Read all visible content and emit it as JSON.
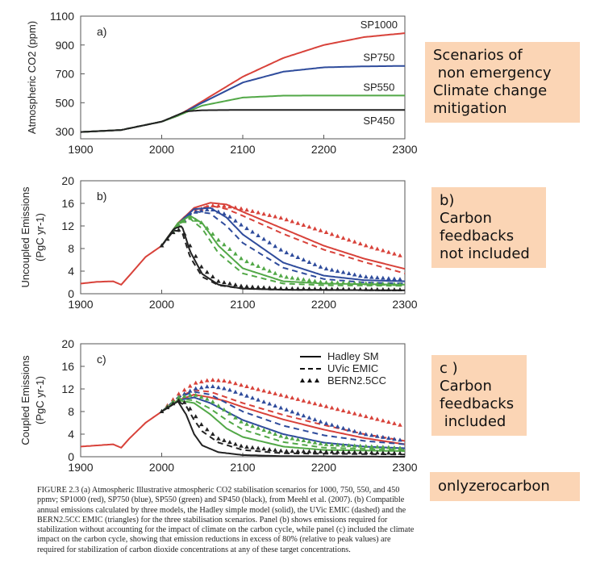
{
  "chart_data": [
    {
      "type": "line",
      "panel_label": "a)",
      "ylabel": "Atmospheric CO2 (ppm)",
      "xlim": [
        1900,
        2300
      ],
      "ylim": [
        250,
        1100
      ],
      "xticks": [
        1900,
        2000,
        2100,
        2200,
        2300
      ],
      "yticks": [
        300,
        500,
        700,
        900,
        1100
      ],
      "series": [
        {
          "name": "SP1000",
          "color": "#d8423a",
          "x": [
            1900,
            1950,
            2000,
            2020,
            2050,
            2100,
            2150,
            2200,
            2250,
            2300
          ],
          "y": [
            297,
            311,
            369,
            410,
            510,
            680,
            810,
            900,
            955,
            982
          ]
        },
        {
          "name": "SP750",
          "color": "#2f4c9c",
          "x": [
            1900,
            1950,
            2000,
            2020,
            2050,
            2100,
            2150,
            2200,
            2250,
            2300
          ],
          "y": [
            297,
            311,
            369,
            410,
            500,
            640,
            715,
            745,
            752,
            755
          ]
        },
        {
          "name": "SP550",
          "color": "#52a847",
          "x": [
            1900,
            1950,
            2000,
            2020,
            2050,
            2100,
            2150,
            2200,
            2250,
            2300
          ],
          "y": [
            297,
            311,
            369,
            410,
            480,
            536,
            549,
            550,
            550,
            550
          ]
        },
        {
          "name": "SP450",
          "color": "#222222",
          "x": [
            1900,
            1950,
            2000,
            2030,
            2050,
            2100,
            2200,
            2300
          ],
          "y": [
            297,
            311,
            369,
            440,
            448,
            450,
            450,
            450
          ]
        }
      ]
    },
    {
      "type": "line",
      "panel_label": "b)",
      "ylabel": "Uncoupled Emissions",
      "yunit": "(PgC yr-1)",
      "xlim": [
        1900,
        2300
      ],
      "ylim": [
        0,
        20
      ],
      "xticks": [
        1900,
        2000,
        2100,
        2200,
        2300
      ],
      "yticks": [
        0,
        4,
        8,
        12,
        16,
        20
      ],
      "series": [
        {
          "color": "#d8423a",
          "style": "solid",
          "x": [
            1900,
            1920,
            1940,
            1950,
            1960,
            1980,
            2000,
            2020,
            2040,
            2060,
            2080,
            2100,
            2150,
            2200,
            2250,
            2300
          ],
          "y": [
            1.8,
            2.1,
            2.2,
            1.6,
            3.2,
            6.5,
            8.5,
            12.5,
            15.2,
            16.1,
            15.8,
            14.5,
            11.5,
            8.5,
            6.2,
            4.4
          ]
        },
        {
          "color": "#d8423a",
          "style": "dashed",
          "x": [
            2000,
            2020,
            2040,
            2060,
            2080,
            2100,
            2150,
            2200,
            2250,
            2300
          ],
          "y": [
            8.5,
            12.2,
            14.8,
            15.6,
            15.0,
            13.8,
            10.6,
            7.8,
            5.6,
            3.6
          ]
        },
        {
          "color": "#d8423a",
          "style": "triangles",
          "x": [
            2000,
            2020,
            2040,
            2060,
            2080,
            2100,
            2150,
            2200,
            2250,
            2300
          ],
          "y": [
            8.5,
            12.0,
            14.5,
            15.6,
            15.5,
            15.0,
            13.3,
            11.0,
            8.6,
            6.5
          ]
        },
        {
          "color": "#2f4c9c",
          "style": "solid",
          "x": [
            2000,
            2020,
            2040,
            2060,
            2080,
            2100,
            2150,
            2200,
            2250,
            2300
          ],
          "y": [
            8.5,
            12.4,
            15.0,
            15.2,
            13.5,
            10.5,
            5.5,
            3.2,
            2.4,
            2.2
          ]
        },
        {
          "color": "#2f4c9c",
          "style": "dashed",
          "x": [
            2000,
            2020,
            2040,
            2060,
            2080,
            2100,
            2150,
            2200,
            2250,
            2300
          ],
          "y": [
            8.5,
            12.2,
            14.6,
            14.2,
            12.0,
            9.0,
            4.6,
            2.6,
            2.0,
            1.8
          ]
        },
        {
          "color": "#2f4c9c",
          "style": "triangles",
          "x": [
            2000,
            2020,
            2040,
            2060,
            2080,
            2100,
            2150,
            2200,
            2250,
            2300
          ],
          "y": [
            8.5,
            12.0,
            14.4,
            15.0,
            14.0,
            12.0,
            7.5,
            4.5,
            3.0,
            2.5
          ]
        },
        {
          "color": "#52a847",
          "style": "solid",
          "x": [
            2000,
            2020,
            2035,
            2050,
            2070,
            2100,
            2150,
            2200,
            2300
          ],
          "y": [
            8.5,
            12.5,
            13.8,
            12.5,
            8.5,
            4.5,
            2.2,
            1.8,
            1.6
          ]
        },
        {
          "color": "#52a847",
          "style": "dashed",
          "x": [
            2000,
            2020,
            2035,
            2050,
            2070,
            2100,
            2150,
            2200,
            2300
          ],
          "y": [
            8.5,
            12.3,
            13.3,
            11.5,
            7.2,
            3.6,
            1.8,
            1.5,
            1.4
          ]
        },
        {
          "color": "#52a847",
          "style": "triangles",
          "x": [
            2000,
            2020,
            2035,
            2050,
            2070,
            2100,
            2150,
            2200,
            2300
          ],
          "y": [
            8.5,
            12.0,
            13.5,
            12.5,
            9.5,
            6.0,
            3.0,
            2.0,
            1.6
          ]
        },
        {
          "color": "#222222",
          "style": "solid",
          "x": [
            2000,
            2015,
            2025,
            2035,
            2050,
            2070,
            2100,
            2150,
            2300
          ],
          "y": [
            8.5,
            11.5,
            12.0,
            7.5,
            3.5,
            1.6,
            0.9,
            0.7,
            0.6
          ]
        },
        {
          "color": "#222222",
          "style": "dashed",
          "x": [
            2000,
            2015,
            2025,
            2035,
            2050,
            2070,
            2100,
            2150,
            2300
          ],
          "y": [
            8.5,
            11.2,
            11.0,
            6.5,
            3.0,
            1.5,
            0.9,
            0.7,
            0.6
          ]
        },
        {
          "color": "#222222",
          "style": "triangles",
          "x": [
            2000,
            2015,
            2025,
            2035,
            2050,
            2070,
            2100,
            2150,
            2300
          ],
          "y": [
            8.5,
            11.0,
            11.5,
            8.5,
            4.5,
            2.2,
            1.3,
            0.9,
            0.7
          ]
        }
      ]
    },
    {
      "type": "line",
      "panel_label": "c)",
      "ylabel": "Coupled Emissions",
      "yunit": "(PgC yr-1)",
      "xlim": [
        1900,
        2300
      ],
      "ylim": [
        0,
        20
      ],
      "xticks": [
        1900,
        2000,
        2100,
        2200,
        2300
      ],
      "yticks": [
        0,
        4,
        8,
        12,
        16,
        20
      ],
      "legend": {
        "position": "top-right",
        "entries": [
          {
            "label": "Hadley SM",
            "style": "solid"
          },
          {
            "label": "UVic EMIC",
            "style": "dashed"
          },
          {
            "label": "BERN2.5CC",
            "style": "triangles"
          }
        ]
      },
      "series": [
        {
          "color": "#d8423a",
          "style": "solid",
          "x": [
            1900,
            1920,
            1940,
            1950,
            1960,
            1980,
            2000,
            2020,
            2040,
            2060,
            2080,
            2100,
            2150,
            2200,
            2250,
            2300
          ],
          "y": [
            1.8,
            2.0,
            2.2,
            1.6,
            3.2,
            6.0,
            8.0,
            10.0,
            11.0,
            10.5,
            9.8,
            8.8,
            6.6,
            4.8,
            3.3,
            2.2
          ]
        },
        {
          "color": "#d8423a",
          "style": "dashed",
          "x": [
            2000,
            2020,
            2040,
            2060,
            2080,
            2100,
            2150,
            2200,
            2250,
            2300
          ],
          "y": [
            8.0,
            10.5,
            11.8,
            11.5,
            10.5,
            9.5,
            7.4,
            5.6,
            4.0,
            2.8
          ]
        },
        {
          "color": "#d8423a",
          "style": "triangles",
          "x": [
            2000,
            2020,
            2040,
            2060,
            2080,
            2100,
            2150,
            2200,
            2250,
            2300
          ],
          "y": [
            8.0,
            11.0,
            13.0,
            13.6,
            13.4,
            12.6,
            10.8,
            9.0,
            7.2,
            5.4
          ]
        },
        {
          "color": "#2f4c9c",
          "style": "solid",
          "x": [
            2000,
            2020,
            2040,
            2060,
            2080,
            2100,
            2150,
            2200,
            2250,
            2300
          ],
          "y": [
            8.0,
            10.0,
            10.5,
            9.5,
            8.0,
            6.5,
            4.0,
            2.5,
            1.8,
            1.5
          ]
        },
        {
          "color": "#2f4c9c",
          "style": "dashed",
          "x": [
            2000,
            2020,
            2040,
            2060,
            2080,
            2100,
            2150,
            2200,
            2250,
            2300
          ],
          "y": [
            8.0,
            10.5,
            11.5,
            11.0,
            9.5,
            8.0,
            5.5,
            3.8,
            2.8,
            2.2
          ]
        },
        {
          "color": "#2f4c9c",
          "style": "triangles",
          "x": [
            2000,
            2020,
            2040,
            2060,
            2080,
            2100,
            2150,
            2200,
            2250,
            2300
          ],
          "y": [
            8.0,
            10.5,
            12.0,
            12.5,
            12.0,
            11.0,
            8.5,
            6.0,
            4.0,
            2.8
          ]
        },
        {
          "color": "#52a847",
          "style": "solid",
          "x": [
            2000,
            2020,
            2040,
            2060,
            2080,
            2100,
            2150,
            2200,
            2300
          ],
          "y": [
            8.0,
            10.0,
            9.5,
            7.5,
            5.0,
            3.5,
            1.8,
            1.2,
            1.0
          ]
        },
        {
          "color": "#52a847",
          "style": "dashed",
          "x": [
            2000,
            2020,
            2040,
            2060,
            2080,
            2100,
            2150,
            2200,
            2300
          ],
          "y": [
            8.0,
            10.2,
            10.0,
            8.5,
            6.5,
            4.8,
            2.6,
            1.6,
            1.2
          ]
        },
        {
          "color": "#52a847",
          "style": "triangles",
          "x": [
            2000,
            2020,
            2040,
            2060,
            2080,
            2100,
            2150,
            2200,
            2300
          ],
          "y": [
            8.0,
            10.5,
            11.0,
            10.0,
            8.0,
            6.0,
            3.5,
            2.2,
            1.5
          ]
        },
        {
          "color": "#222222",
          "style": "solid",
          "x": [
            2000,
            2020,
            2030,
            2040,
            2050,
            2070,
            2100,
            2150,
            2300
          ],
          "y": [
            8.0,
            9.8,
            7.5,
            4.0,
            2.0,
            0.8,
            0.3,
            0.1,
            0.0
          ]
        },
        {
          "color": "#222222",
          "style": "dashed",
          "x": [
            2000,
            2020,
            2030,
            2040,
            2050,
            2070,
            2100,
            2150,
            2300
          ],
          "y": [
            8.0,
            9.8,
            9.0,
            6.5,
            4.5,
            2.5,
            1.2,
            0.6,
            0.4
          ]
        },
        {
          "color": "#222222",
          "style": "triangles",
          "x": [
            2000,
            2020,
            2030,
            2040,
            2050,
            2070,
            2100,
            2150,
            2300
          ],
          "y": [
            8.0,
            10.0,
            9.5,
            7.5,
            5.5,
            3.2,
            1.8,
            1.0,
            0.6
          ]
        }
      ]
    }
  ],
  "annotations": {
    "note_a": [
      "Scenarios of",
      " non emergency",
      "Climate change",
      "mitigation"
    ],
    "note_b": [
      "b)",
      "Carbon",
      "feedbacks",
      "not included"
    ],
    "note_c": [
      "c )",
      "Carbon",
      "feedbacks",
      " included"
    ],
    "note_d": [
      "onlyzerocarbon"
    ]
  },
  "caption": "FIGURE 2.3  (a) Atmospheric Illustrative atmospheric CO2 stabilisation scenarios for 1000, 750, 550, and 450 ppmv; SP1000 (red), SP750 (blue), SP550 (green) and SP450 (black), from Meehl et al. (2007). (b) Compatible annual emissions calculated by three models, the Hadley simple model (solid), the UVic EMIC (dashed) and the BERN2.5CC EMIC (triangles) for the three stabilisation scenarios. Panel (b) shows emissions required for stabilization without accounting for the impact of climate on the carbon cycle, while panel (c) included the climate impact on the carbon cycle, showing that emission reductions in excess of 80% (relative to peak values) are required for stabilization of carbon dioxide concentrations at any of these target concentrations."
}
